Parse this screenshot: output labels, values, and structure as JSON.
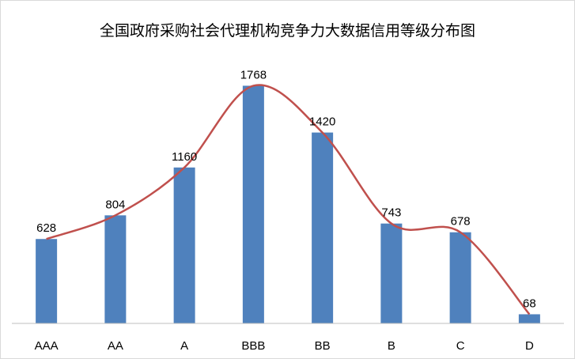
{
  "chart_data": {
    "type": "bar",
    "title": "全国政府采购社会代理机构竞争力大数据信用等级分布图",
    "categories": [
      "AAA",
      "AA",
      "A",
      "BBB",
      "BB",
      "B",
      "C",
      "D"
    ],
    "values": [
      628,
      804,
      1160,
      1768,
      1420,
      743,
      678,
      68
    ],
    "trendline": "smoothed line through bar values",
    "colors": {
      "bar": "#4f81bd",
      "line": "#c0504d",
      "axis": "#bfbfbf"
    },
    "ylim": [
      0,
      1900
    ],
    "grid": false,
    "legend": "none",
    "data_labels": true
  }
}
